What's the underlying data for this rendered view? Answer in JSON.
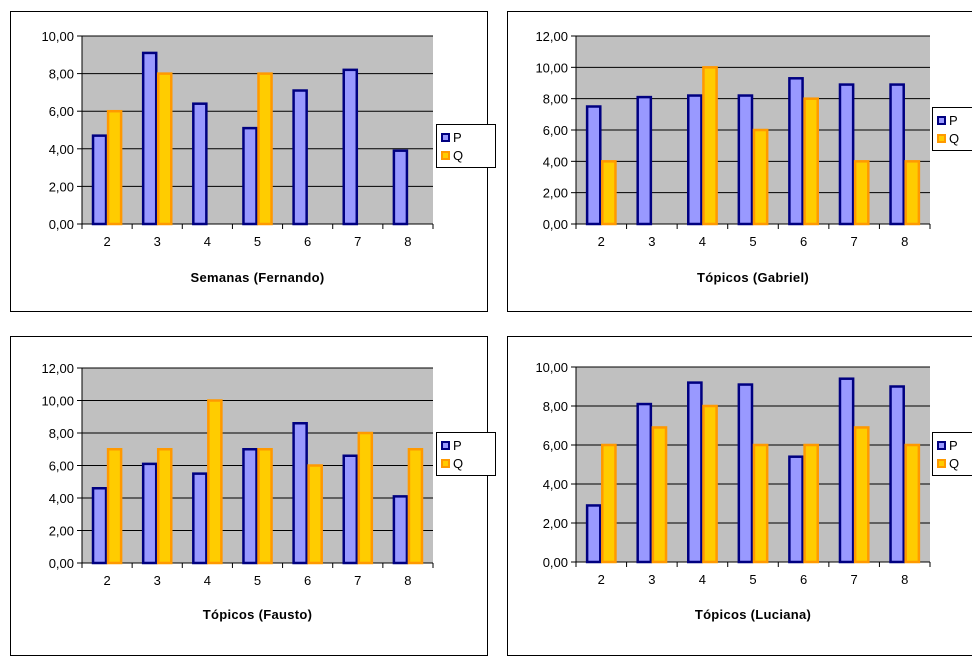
{
  "style": {
    "plot_bg": "#c0c0c0",
    "p_fill": "#9999ff",
    "p_border": "#000080",
    "q_fill": "#ffcc00",
    "q_border": "#ff9900"
  },
  "chart_data": [
    {
      "type": "bar",
      "categories": [
        "2",
        "3",
        "4",
        "5",
        "6",
        "7",
        "8"
      ],
      "xlabel": "Semanas (Fernando)",
      "ylabel": "",
      "ylim": [
        0,
        10
      ],
      "yticks": [
        "0,00",
        "2,00",
        "4,00",
        "6,00",
        "8,00",
        "10,00"
      ],
      "grid": true,
      "legend": "right",
      "series": [
        {
          "name": "P",
          "values": [
            4.7,
            9.1,
            6.4,
            5.1,
            7.1,
            8.2,
            3.9
          ]
        },
        {
          "name": "Q",
          "values": [
            6.0,
            8.0,
            null,
            8.0,
            null,
            null,
            null
          ]
        }
      ]
    },
    {
      "type": "bar",
      "categories": [
        "2",
        "3",
        "4",
        "5",
        "6",
        "7",
        "8"
      ],
      "xlabel": "Tópicos (Gabriel)",
      "ylabel": "",
      "ylim": [
        0,
        12
      ],
      "yticks": [
        "0,00",
        "2,00",
        "4,00",
        "6,00",
        "8,00",
        "10,00",
        "12,00"
      ],
      "grid": true,
      "legend": "right",
      "series": [
        {
          "name": "P",
          "values": [
            7.5,
            8.1,
            8.2,
            8.2,
            9.3,
            8.9,
            8.9
          ]
        },
        {
          "name": "Q",
          "values": [
            4.0,
            null,
            10.0,
            6.0,
            8.0,
            4.0,
            4.0
          ]
        }
      ]
    },
    {
      "type": "bar",
      "categories": [
        "2",
        "3",
        "4",
        "5",
        "6",
        "7",
        "8"
      ],
      "xlabel": "Tópicos (Fausto)",
      "ylabel": "",
      "ylim": [
        0,
        12
      ],
      "yticks": [
        "0,00",
        "2,00",
        "4,00",
        "6,00",
        "8,00",
        "10,00",
        "12,00"
      ],
      "grid": true,
      "legend": "right",
      "series": [
        {
          "name": "P",
          "values": [
            4.6,
            6.1,
            5.5,
            7.0,
            8.6,
            6.6,
            4.1
          ]
        },
        {
          "name": "Q",
          "values": [
            7.0,
            7.0,
            10.0,
            7.0,
            6.0,
            8.0,
            7.0
          ]
        }
      ]
    },
    {
      "type": "bar",
      "categories": [
        "2",
        "3",
        "4",
        "5",
        "6",
        "7",
        "8"
      ],
      "xlabel": "Tópicos (Luciana)",
      "ylabel": "",
      "ylim": [
        0,
        10
      ],
      "yticks": [
        "0,00",
        "2,00",
        "4,00",
        "6,00",
        "8,00",
        "10,00"
      ],
      "grid": true,
      "legend": "right",
      "series": [
        {
          "name": "P",
          "values": [
            2.9,
            8.1,
            9.2,
            9.1,
            5.4,
            9.4,
            9.0
          ]
        },
        {
          "name": "Q",
          "values": [
            6.0,
            6.9,
            8.0,
            6.0,
            6.0,
            6.9,
            6.0
          ]
        }
      ]
    }
  ]
}
